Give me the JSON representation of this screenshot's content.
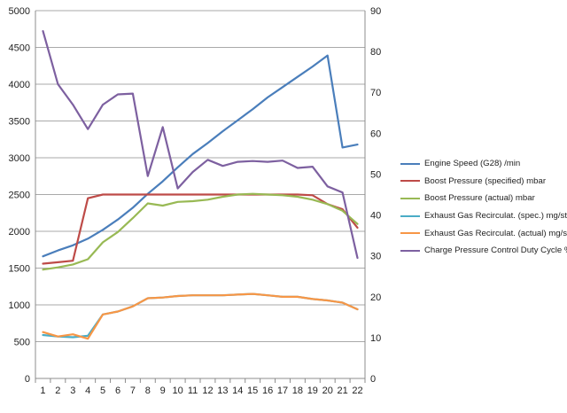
{
  "chart_data": {
    "type": "line",
    "title": "",
    "xlabel": "",
    "ylabel": "",
    "x": [
      1,
      2,
      3,
      4,
      5,
      6,
      7,
      8,
      9,
      10,
      11,
      12,
      13,
      14,
      15,
      16,
      17,
      18,
      19,
      20,
      21,
      22
    ],
    "x_tick_labels": [
      "1",
      "2",
      "3",
      "4",
      "5",
      "6",
      "7",
      "8",
      "9",
      "10",
      "11",
      "12",
      "13",
      "14",
      "15",
      "16",
      "17",
      "18",
      "19",
      "20",
      "21",
      "22"
    ],
    "ylim_left": [
      0,
      5000
    ],
    "ylim_right": [
      0,
      90
    ],
    "y_ticks_left": [
      "0",
      "500",
      "1000",
      "1500",
      "2000",
      "2500",
      "3000",
      "3500",
      "4000",
      "4500",
      "5000"
    ],
    "y_ticks_right": [
      "0",
      "10",
      "20",
      "30",
      "40",
      "50",
      "60",
      "70",
      "80",
      "90"
    ],
    "grid": "horizontal",
    "legend_position": "right",
    "series": [
      {
        "name": "Engine Speed (G28)  /min",
        "axis": "left",
        "color": "#4a7ebb",
        "values": [
          1660,
          1740,
          1810,
          1900,
          2020,
          2160,
          2320,
          2510,
          2680,
          2870,
          3050,
          3200,
          3360,
          3510,
          3660,
          3820,
          3960,
          4100,
          4240,
          4390,
          3140,
          3180
        ]
      },
      {
        "name": "Boost Pressure (specified)  mbar",
        "axis": "left",
        "color": "#be4b48",
        "values": [
          1560,
          1580,
          1600,
          2450,
          2500,
          2500,
          2500,
          2500,
          2500,
          2500,
          2500,
          2500,
          2500,
          2500,
          2500,
          2500,
          2500,
          2500,
          2490,
          2370,
          2300,
          2050
        ]
      },
      {
        "name": "Boost Pressure (actual)  mbar",
        "axis": "left",
        "color": "#98b954",
        "values": [
          1480,
          1510,
          1550,
          1620,
          1850,
          1990,
          2180,
          2380,
          2350,
          2400,
          2410,
          2430,
          2470,
          2500,
          2510,
          2500,
          2490,
          2470,
          2430,
          2370,
          2280,
          2100
        ]
      },
      {
        "name": "Exhaust Gas Recirculat. (spec.)  mg/str",
        "axis": "left",
        "color": "#4bacc6",
        "values": [
          590,
          570,
          560,
          580,
          870,
          910,
          980,
          1090,
          1100,
          1120,
          1130,
          1130,
          1130,
          1140,
          1150,
          1130,
          1110,
          1110,
          1080,
          1060,
          1030,
          940
        ]
      },
      {
        "name": "Exhaust Gas Recirculat. (actual)  mg/str",
        "axis": "left",
        "color": "#f79646",
        "values": [
          630,
          570,
          600,
          540,
          870,
          910,
          980,
          1090,
          1100,
          1120,
          1130,
          1130,
          1130,
          1140,
          1150,
          1130,
          1110,
          1110,
          1080,
          1060,
          1030,
          940
        ]
      },
      {
        "name": "Charge Pressure Control Duty Cycle  %",
        "axis": "right",
        "color": "#7d60a0",
        "values": [
          85,
          72,
          67,
          61,
          67,
          69.5,
          69.7,
          49.5,
          61.5,
          46.5,
          50.5,
          53.5,
          52,
          53,
          53.2,
          53,
          53.3,
          51.5,
          51.8,
          47,
          45.5,
          29.5
        ]
      }
    ]
  }
}
